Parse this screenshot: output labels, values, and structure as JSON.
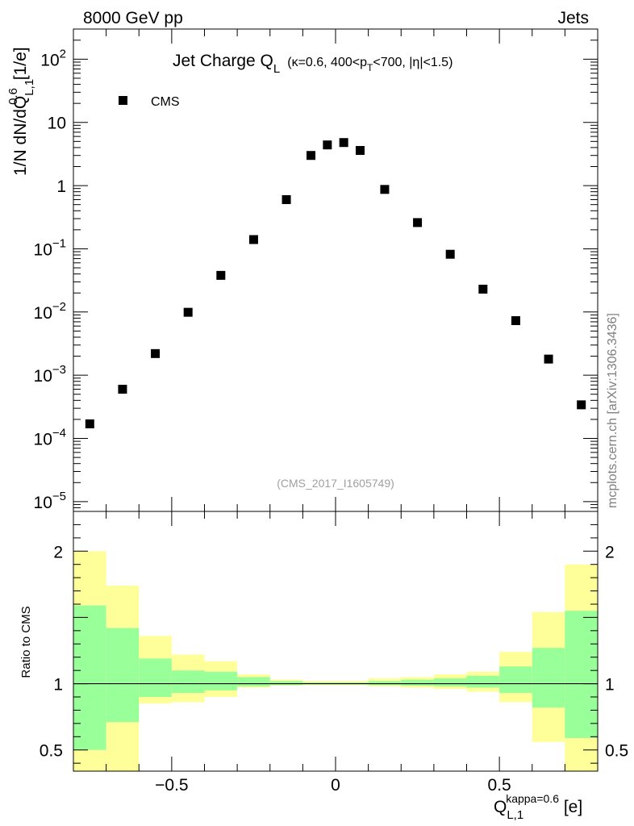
{
  "header": {
    "left_label": "8000 GeV pp",
    "right_label": "Jets"
  },
  "side_label": "mcplots.cern.ch [arXiv:1306.3436]",
  "chart_data": [
    {
      "type": "scatter",
      "panel": "main",
      "title": "Jet Charge Q",
      "title_sub": "L",
      "title_suffix_parts": [
        "(κ=0.6, 400<p",
        "T",
        "<700, |η|<1.5)"
      ],
      "watermark": "(CMS_2017_I1605749)",
      "ylabel_parts": [
        "1/N dN/dQ",
        "L,1",
        "0.6",
        " [1/e]"
      ],
      "yscale": "log",
      "ylim": [
        7e-06,
        300
      ],
      "xlim": [
        -0.8,
        0.8
      ],
      "grid": false,
      "legend_position": "top-left",
      "y_ticks": [
        {
          "value": 100,
          "base": "10",
          "exp": "2"
        },
        {
          "value": 10,
          "base": "10",
          "exp": ""
        },
        {
          "value": 1,
          "base": "1",
          "exp": ""
        },
        {
          "value": 0.1,
          "base": "10",
          "exp": "−1"
        },
        {
          "value": 0.01,
          "base": "10",
          "exp": "−2"
        },
        {
          "value": 0.001,
          "base": "10",
          "exp": "−3"
        },
        {
          "value": 0.0001,
          "base": "10",
          "exp": "−4"
        },
        {
          "value": 1e-05,
          "base": "10",
          "exp": "−5"
        }
      ],
      "series": [
        {
          "name": "CMS",
          "color": "#000000",
          "x": [
            -0.75,
            -0.65,
            -0.55,
            -0.45,
            -0.35,
            -0.25,
            -0.15,
            -0.075,
            -0.025,
            0.025,
            0.075,
            0.15,
            0.25,
            0.35,
            0.45,
            0.55,
            0.65,
            0.75
          ],
          "y": [
            0.00017,
            0.0006,
            0.0022,
            0.0099,
            0.038,
            0.14,
            0.6,
            3.0,
            4.4,
            4.8,
            3.6,
            0.87,
            0.26,
            0.082,
            0.023,
            0.0073,
            0.0018,
            0.00034
          ]
        }
      ]
    },
    {
      "type": "area",
      "panel": "ratio",
      "ylabel": "Ratio to CMS",
      "xlabel_parts": [
        "Q",
        "L,1",
        "kappa=0.6",
        " [e]"
      ],
      "ylim": [
        0.34,
        2.3
      ],
      "xlim": [
        -0.8,
        0.8
      ],
      "reference_line": 1,
      "x_ticks": [
        {
          "value": -0.5,
          "label": "−0.5"
        },
        {
          "value": 0,
          "label": "0"
        },
        {
          "value": 0.5,
          "label": "0.5"
        }
      ],
      "y_ticks": [
        {
          "value": 2,
          "label": "2"
        },
        {
          "value": 1,
          "label": "1"
        },
        {
          "value": 0.5,
          "label": "0.5"
        }
      ],
      "bins": [
        {
          "lo": -0.8,
          "hi": -0.7,
          "outer": [
            0.3,
            2.0
          ],
          "inner": [
            0.5,
            1.59
          ]
        },
        {
          "lo": -0.7,
          "hi": -0.6,
          "outer": [
            0.3,
            1.74
          ],
          "inner": [
            0.71,
            1.42
          ]
        },
        {
          "lo": -0.6,
          "hi": -0.5,
          "outer": [
            0.85,
            1.36
          ],
          "inner": [
            0.9,
            1.19
          ]
        },
        {
          "lo": -0.5,
          "hi": -0.4,
          "outer": [
            0.86,
            1.22
          ],
          "inner": [
            0.93,
            1.1
          ]
        },
        {
          "lo": -0.4,
          "hi": -0.3,
          "outer": [
            0.9,
            1.17
          ],
          "inner": [
            0.95,
            1.09
          ]
        },
        {
          "lo": -0.3,
          "hi": -0.2,
          "outer": [
            0.97,
            1.07
          ],
          "inner": [
            0.98,
            1.05
          ]
        },
        {
          "lo": -0.2,
          "hi": -0.1,
          "outer": [
            0.985,
            1.03
          ],
          "inner": [
            0.99,
            1.02
          ]
        },
        {
          "lo": -0.1,
          "hi": 0.0,
          "outer": [
            0.99,
            1.02
          ],
          "inner": [
            0.995,
            1.01
          ]
        },
        {
          "lo": 0.0,
          "hi": 0.1,
          "outer": [
            0.99,
            1.02
          ],
          "inner": [
            0.995,
            1.01
          ]
        },
        {
          "lo": 0.1,
          "hi": 0.2,
          "outer": [
            0.98,
            1.04
          ],
          "inner": [
            0.99,
            1.02
          ]
        },
        {
          "lo": 0.2,
          "hi": 0.3,
          "outer": [
            0.97,
            1.05
          ],
          "inner": [
            0.985,
            1.03
          ]
        },
        {
          "lo": 0.3,
          "hi": 0.4,
          "outer": [
            0.96,
            1.07
          ],
          "inner": [
            0.98,
            1.04
          ]
        },
        {
          "lo": 0.4,
          "hi": 0.5,
          "outer": [
            0.94,
            1.09
          ],
          "inner": [
            0.97,
            1.06
          ]
        },
        {
          "lo": 0.5,
          "hi": 0.6,
          "outer": [
            0.86,
            1.24
          ],
          "inner": [
            0.93,
            1.13
          ]
        },
        {
          "lo": 0.6,
          "hi": 0.7,
          "outer": [
            0.56,
            1.54
          ],
          "inner": [
            0.82,
            1.27
          ]
        },
        {
          "lo": 0.7,
          "hi": 0.8,
          "outer": [
            0.3,
            1.9
          ],
          "inner": [
            0.59,
            1.55
          ]
        }
      ],
      "colors": {
        "outer": "#ffff99",
        "inner": "#99ff99"
      }
    }
  ]
}
